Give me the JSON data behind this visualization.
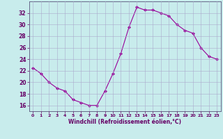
{
  "x": [
    0,
    1,
    2,
    3,
    4,
    5,
    6,
    7,
    8,
    9,
    10,
    11,
    12,
    13,
    14,
    15,
    16,
    17,
    18,
    19,
    20,
    21,
    22,
    23
  ],
  "y": [
    22.5,
    21.5,
    20.0,
    19.0,
    18.5,
    17.0,
    16.5,
    16.0,
    16.0,
    18.5,
    21.5,
    25.0,
    29.5,
    33.0,
    32.5,
    32.5,
    32.0,
    31.5,
    30.0,
    29.0,
    28.5,
    26.0,
    24.5,
    24.0
  ],
  "line_color": "#990099",
  "marker": "D",
  "marker_size": 2.0,
  "bg_color": "#c8ecec",
  "grid_color": "#aaaacc",
  "xlabel": "Windchill (Refroidissement éolien,°C)",
  "ylim": [
    15,
    34
  ],
  "yticks": [
    16,
    18,
    20,
    22,
    24,
    26,
    28,
    30,
    32
  ],
  "xticks": [
    0,
    1,
    2,
    3,
    4,
    5,
    6,
    7,
    8,
    9,
    10,
    11,
    12,
    13,
    14,
    15,
    16,
    17,
    18,
    19,
    20,
    21,
    22,
    23
  ],
  "tick_color": "#660066",
  "xlabel_color": "#660066",
  "spine_color": "#666688"
}
